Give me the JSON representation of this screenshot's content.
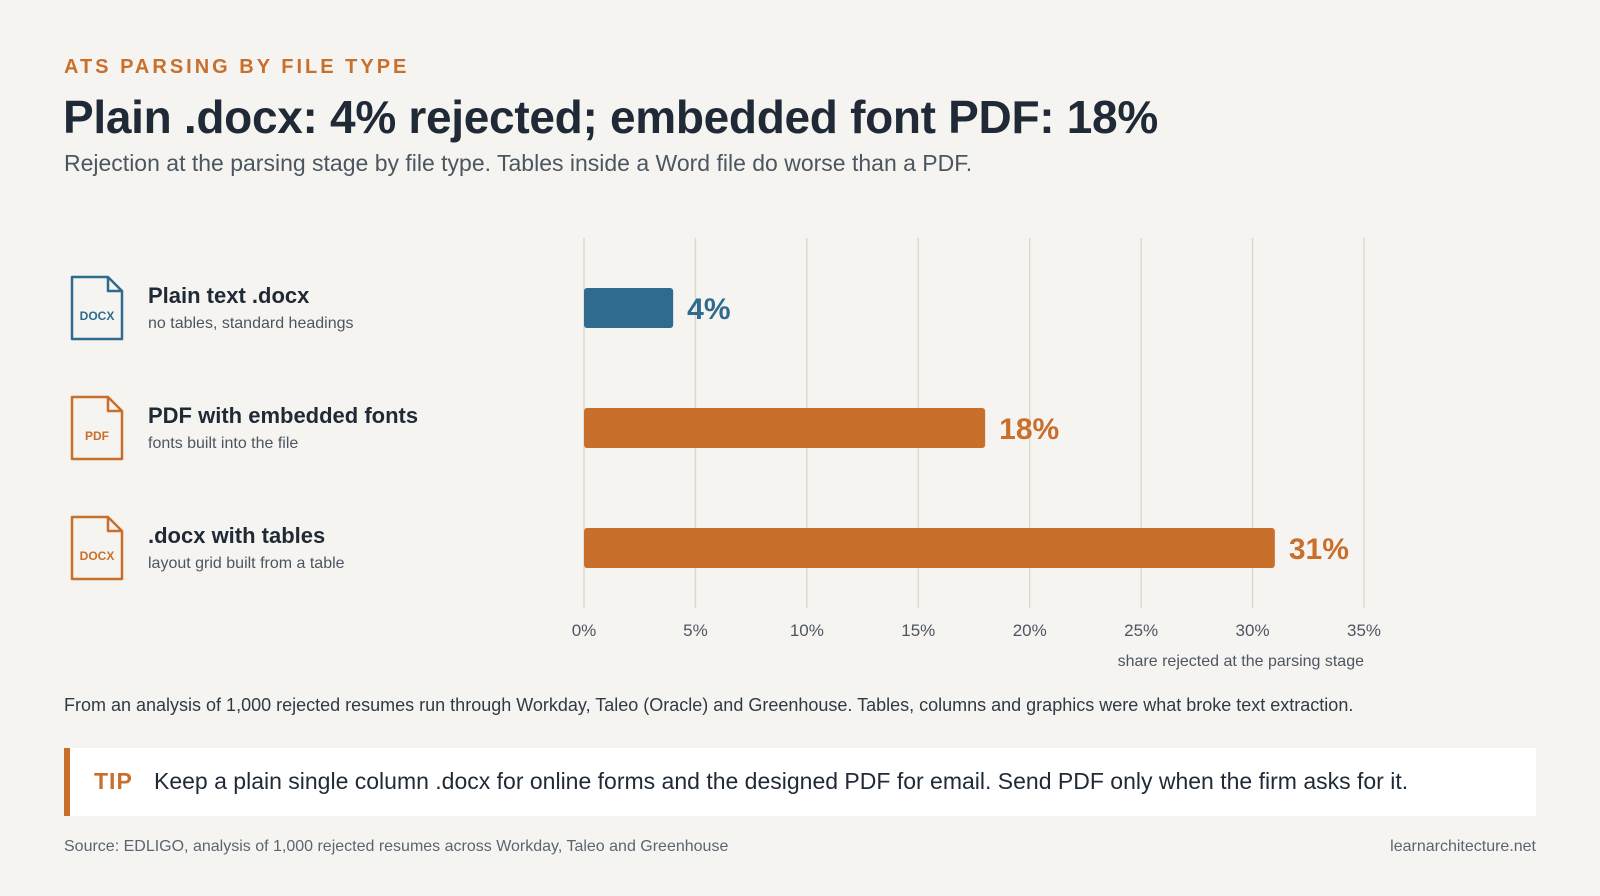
{
  "header": {
    "eyebrow": "ATS PARSING BY FILE TYPE",
    "title": "Plain .docx: 4% rejected; embedded font PDF: 18%",
    "subtitle": "Rejection at the parsing stage by file type. Tables inside a Word file do worse than a PDF."
  },
  "rows": [
    {
      "title": "Plain text .docx",
      "subtitle": "no tables, standard headings",
      "icon": "docx-file-icon",
      "icon_label": "DOCX",
      "color": "#2e6b8e"
    },
    {
      "title": "PDF with embedded fonts",
      "subtitle": "fonts built into the file",
      "icon": "pdf-file-icon",
      "icon_label": "PDF",
      "color": "#c96f2c"
    },
    {
      "title": ".docx with tables",
      "subtitle": "layout grid built from a table",
      "icon": "docx-file-icon",
      "icon_label": "DOCX",
      "color": "#c96f2c"
    }
  ],
  "chart_data": {
    "type": "bar",
    "orientation": "horizontal",
    "categories": [
      "Plain text .docx",
      "PDF with embedded fonts",
      ".docx with tables"
    ],
    "values": [
      4,
      18,
      31
    ],
    "value_labels": [
      "4%",
      "18%",
      "31%"
    ],
    "colors": [
      "#2e6b8e",
      "#c96f2c",
      "#c96f2c"
    ],
    "xlim": [
      0,
      35
    ],
    "xticks": [
      0,
      5,
      10,
      15,
      20,
      25,
      30,
      35
    ],
    "xtick_labels": [
      "0%",
      "5%",
      "10%",
      "15%",
      "20%",
      "25%",
      "30%",
      "35%"
    ],
    "xlabel": "share rejected at the parsing stage",
    "grid": true
  },
  "note": "From an analysis of 1,000 rejected resumes run through Workday, Taleo (Oracle) and Greenhouse. Tables, columns and graphics were what broke text extraction.",
  "tip": {
    "label": "TIP",
    "text": "Keep a plain single column .docx for online forms and the designed PDF for email. Send PDF only when the firm asks for it."
  },
  "footer": {
    "source": "Source: EDLIGO, analysis of 1,000 rejected resumes across Workday, Taleo and Greenhouse",
    "site": "learnarchitecture.net"
  }
}
